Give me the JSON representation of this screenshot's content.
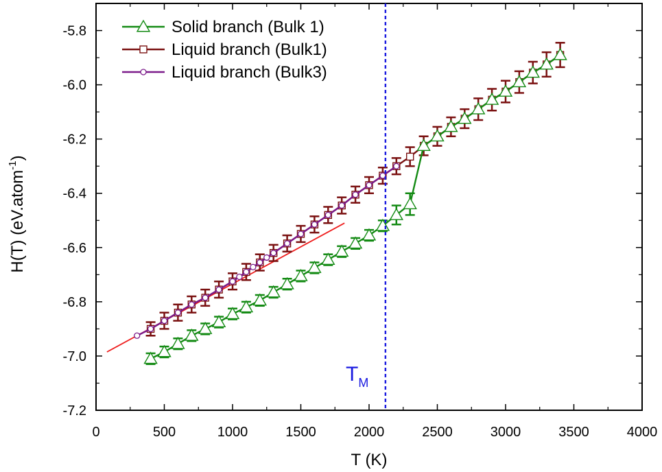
{
  "chart_data": {
    "type": "line",
    "xlabel": "T (K)",
    "ylabel": {
      "main": "H(T) (eV.atom",
      "sup": "-1",
      "close": ")"
    },
    "xlim": [
      0,
      4000
    ],
    "ylim": [
      -7.2,
      -5.7
    ],
    "xticks": [
      0,
      500,
      1000,
      1500,
      2000,
      2500,
      3000,
      3500,
      4000
    ],
    "yticks": [
      -7.2,
      -7.0,
      -6.8,
      -6.6,
      -6.4,
      -6.2,
      -6.0,
      -5.8
    ],
    "ytick_labels": [
      "-7.2",
      "-7.0",
      "-6.8",
      "-6.6",
      "-6.4",
      "-6.2",
      "-6.0",
      "-5.8"
    ],
    "grid": false,
    "legend_position": "top-left",
    "series": [
      {
        "name": "Solid branch  (Bulk 1)",
        "color": "#138a13",
        "marker": "triangle",
        "x": [
          400,
          500,
          600,
          700,
          800,
          900,
          1000,
          1100,
          1200,
          1300,
          1400,
          1500,
          1600,
          1700,
          1800,
          1900,
          2000,
          2100,
          2200,
          2300,
          2400,
          2500,
          2600,
          2700,
          2800,
          2900,
          3000,
          3100,
          3200,
          3300,
          3400
        ],
        "y": [
          -7.01,
          -6.985,
          -6.955,
          -6.925,
          -6.9,
          -6.875,
          -6.845,
          -6.82,
          -6.795,
          -6.765,
          -6.735,
          -6.705,
          -6.675,
          -6.645,
          -6.615,
          -6.585,
          -6.555,
          -6.52,
          -6.48,
          -6.44,
          -6.225,
          -6.19,
          -6.155,
          -6.125,
          -6.09,
          -6.055,
          -6.025,
          -5.99,
          -5.955,
          -5.925,
          -5.89
        ],
        "err": [
          0.02,
          0.02,
          0.02,
          0.02,
          0.02,
          0.02,
          0.02,
          0.02,
          0.02,
          0.02,
          0.02,
          0.02,
          0.02,
          0.02,
          0.02,
          0.02,
          0.02,
          0.02,
          0.035,
          0.04,
          0,
          0,
          0,
          0,
          0,
          0,
          0,
          0,
          0,
          0,
          0
        ]
      },
      {
        "name": "Liquid branch (Bulk1)",
        "color": "#7a1010",
        "marker": "square",
        "x": [
          400,
          500,
          600,
          700,
          800,
          900,
          1000,
          1100,
          1200,
          1300,
          1400,
          1500,
          1600,
          1700,
          1800,
          1900,
          2000,
          2100,
          2200,
          2300,
          2400,
          2500,
          2600,
          2700,
          2800,
          2900,
          3000,
          3100,
          3200,
          3300,
          3400
        ],
        "y": [
          -6.9,
          -6.87,
          -6.84,
          -6.81,
          -6.785,
          -6.755,
          -6.725,
          -6.69,
          -6.655,
          -6.62,
          -6.585,
          -6.55,
          -6.515,
          -6.48,
          -6.445,
          -6.405,
          -6.37,
          -6.335,
          -6.3,
          -6.265,
          -6.225,
          -6.19,
          -6.155,
          -6.125,
          -6.09,
          -6.055,
          -6.025,
          -5.99,
          -5.955,
          -5.925,
          -5.89
        ],
        "err": [
          0.025,
          0.03,
          0.03,
          0.03,
          0.03,
          0.03,
          0.03,
          0.03,
          0.03,
          0.03,
          0.03,
          0.03,
          0.03,
          0.03,
          0.03,
          0.03,
          0.03,
          0.03,
          0.03,
          0.035,
          0.035,
          0.035,
          0.035,
          0.035,
          0.04,
          0.04,
          0.04,
          0.04,
          0.04,
          0.045,
          0.045
        ]
      },
      {
        "name": "Liquid branch (Bulk3)",
        "color": "#7b1a8a",
        "marker": "circle",
        "x": [
          300,
          400,
          500,
          600,
          700,
          800,
          900,
          1000,
          1050,
          1100,
          1150,
          1200,
          1250,
          1300,
          1400,
          1500,
          1600,
          1700,
          1800,
          1900,
          2000,
          2100,
          2200
        ],
        "y": [
          -6.925,
          -6.9,
          -6.87,
          -6.84,
          -6.81,
          -6.785,
          -6.755,
          -6.725,
          -6.708,
          -6.69,
          -6.672,
          -6.655,
          -6.637,
          -6.62,
          -6.585,
          -6.55,
          -6.515,
          -6.48,
          -6.445,
          -6.405,
          -6.37,
          -6.335,
          -6.3
        ]
      }
    ],
    "fit_line": {
      "color": "#ee1c1c",
      "x": [
        80,
        1820
      ],
      "y": [
        -6.985,
        -6.51
      ]
    },
    "reference_line": {
      "x": 2120,
      "color": "#1a1ae0",
      "label": "T",
      "label_sub": "M"
    }
  }
}
